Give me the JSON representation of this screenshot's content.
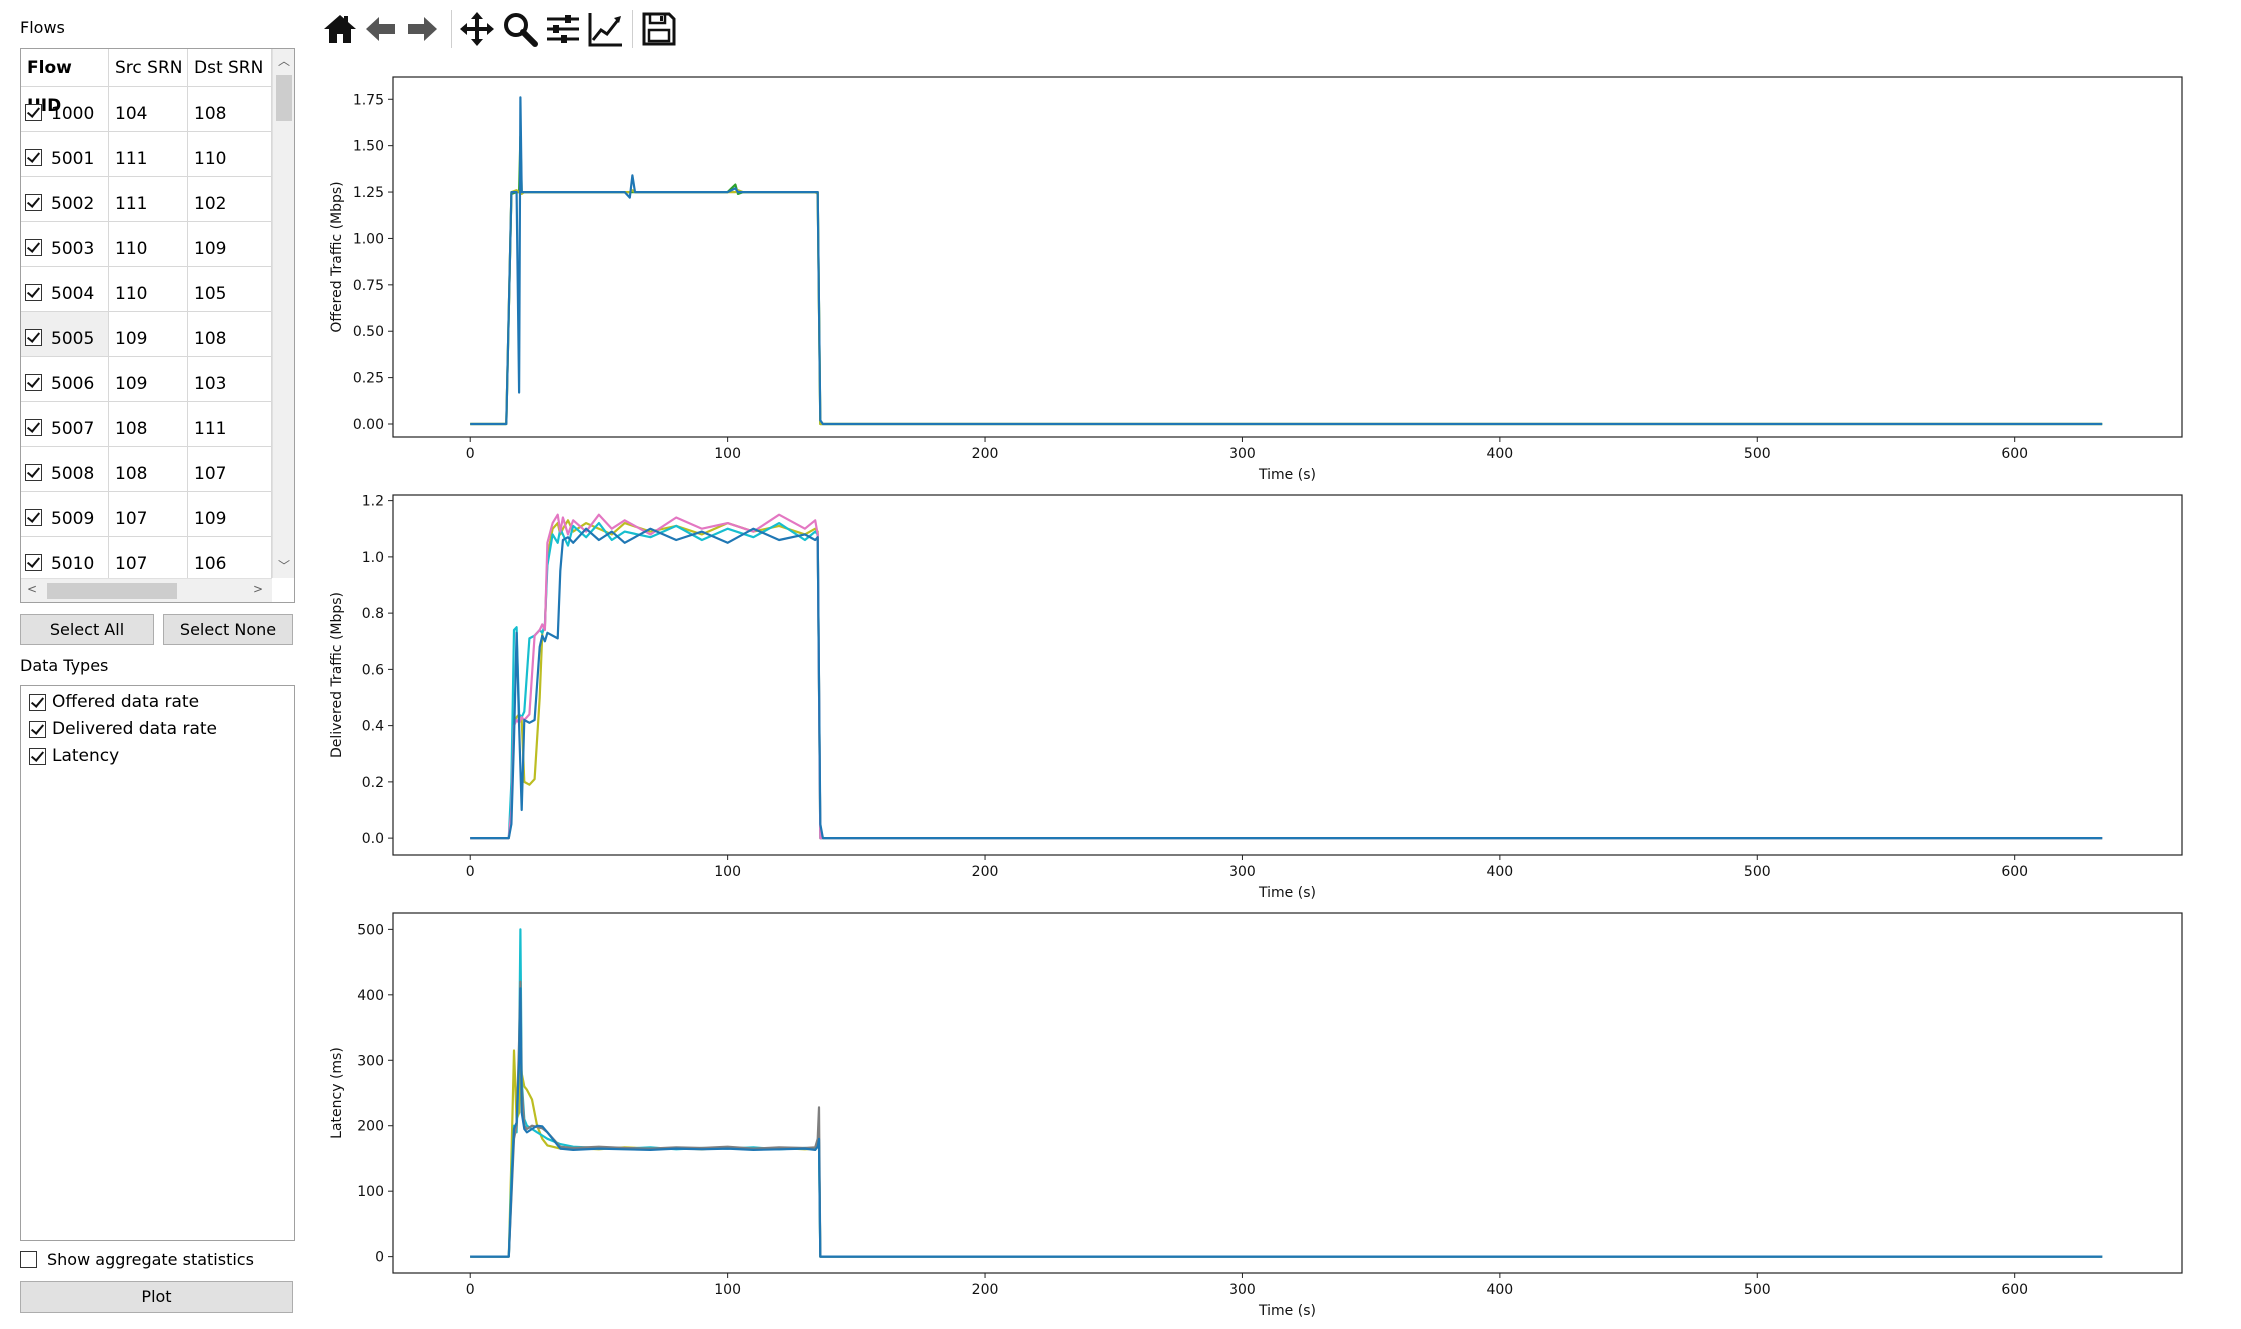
{
  "flows_label": "Flows",
  "table": {
    "columns": [
      "Flow UID",
      "Src SRN",
      "Dst SRN"
    ],
    "rows": [
      {
        "uid": "1000",
        "src": "104",
        "dst": "108"
      },
      {
        "uid": "5001",
        "src": "111",
        "dst": "110"
      },
      {
        "uid": "5002",
        "src": "111",
        "dst": "102"
      },
      {
        "uid": "5003",
        "src": "110",
        "dst": "109"
      },
      {
        "uid": "5004",
        "src": "110",
        "dst": "105"
      },
      {
        "uid": "5005",
        "src": "109",
        "dst": "108"
      },
      {
        "uid": "5006",
        "src": "109",
        "dst": "103"
      },
      {
        "uid": "5007",
        "src": "108",
        "dst": "111"
      },
      {
        "uid": "5008",
        "src": "108",
        "dst": "107"
      },
      {
        "uid": "5009",
        "src": "107",
        "dst": "109"
      },
      {
        "uid": "5010",
        "src": "107",
        "dst": "106"
      }
    ]
  },
  "buttons": {
    "select_all": "Select All",
    "select_none": "Select None",
    "plot": "Plot"
  },
  "data_types_label": "Data Types",
  "data_types": [
    {
      "label": "Offered data rate",
      "checked": true
    },
    {
      "label": "Delivered data rate",
      "checked": true
    },
    {
      "label": "Latency",
      "checked": true
    }
  ],
  "aggregate_label": "Show aggregate statistics",
  "toolbar": [
    "home-icon",
    "back-icon",
    "forward-icon",
    "pan-icon",
    "zoom-icon",
    "configure-subplots-icon",
    "edit-axes-icon",
    "save-icon"
  ],
  "chart_data": [
    {
      "type": "line",
      "ylabel": "Offered Traffic (Mbps)",
      "xlabel": "Time (s)",
      "xlim": [
        -30,
        665
      ],
      "ylim": [
        -0.07,
        1.87
      ],
      "xticks": [
        0,
        100,
        200,
        300,
        400,
        500,
        600
      ],
      "yticks": [
        "0.00",
        "0.25",
        "0.50",
        "0.75",
        "1.00",
        "1.25",
        "1.50",
        "1.75"
      ],
      "x": [
        0,
        14,
        16,
        18,
        19,
        19.5,
        20,
        21,
        60,
        62,
        63,
        64,
        66,
        100,
        103,
        104,
        106,
        134,
        135,
        136,
        137,
        634
      ],
      "series": [
        {
          "color": "#1f77b4",
          "values": [
            0,
            0,
            1.25,
            1.25,
            0.17,
            1.76,
            1.25,
            1.25,
            1.25,
            1.22,
            1.34,
            1.25,
            1.25,
            1.25,
            1.27,
            1.25,
            1.25,
            1.25,
            1.25,
            0.02,
            0,
            0
          ]
        },
        {
          "color": "#2ca02c",
          "values": [
            0,
            0,
            1.24,
            1.25,
            1.25,
            1.55,
            1.25,
            1.25,
            1.25,
            1.25,
            1.25,
            1.25,
            1.25,
            1.25,
            1.29,
            1.24,
            1.25,
            1.25,
            1.25,
            0,
            0,
            0
          ]
        },
        {
          "color": "#bcbd22",
          "values": [
            0,
            0,
            1.25,
            1.26,
            1.25,
            1.25,
            1.24,
            1.25,
            1.25,
            1.25,
            1.26,
            1.25,
            1.25,
            1.25,
            1.25,
            1.26,
            1.25,
            1.25,
            1.24,
            0,
            0,
            0
          ]
        }
      ]
    },
    {
      "type": "line",
      "ylabel": "Delivered Traffic (Mbps)",
      "xlabel": "Time (s)",
      "xlim": [
        -30,
        665
      ],
      "ylim": [
        -0.06,
        1.22
      ],
      "xticks": [
        0,
        100,
        200,
        300,
        400,
        500,
        600
      ],
      "yticks": [
        "0.0",
        "0.2",
        "0.4",
        "0.6",
        "0.8",
        "1.0",
        "1.2"
      ],
      "x": [
        0,
        15,
        16,
        17,
        18,
        19,
        20,
        21,
        23,
        25,
        27,
        28,
        29,
        30,
        32,
        34,
        35,
        36,
        38,
        40,
        45,
        50,
        55,
        60,
        70,
        80,
        90,
        100,
        110,
        120,
        130,
        134,
        135,
        136,
        137,
        634
      ],
      "series": [
        {
          "color": "#1f77b4",
          "values": [
            0,
            0,
            0.05,
            0.35,
            0.73,
            0.4,
            0.1,
            0.42,
            0.41,
            0.42,
            0.68,
            0.72,
            0.7,
            0.73,
            0.72,
            0.71,
            0.95,
            1.06,
            1.07,
            1.05,
            1.1,
            1.06,
            1.09,
            1.05,
            1.1,
            1.06,
            1.09,
            1.05,
            1.1,
            1.06,
            1.08,
            1.06,
            1.07,
            0.05,
            0,
            0
          ]
        },
        {
          "color": "#bcbd22",
          "values": [
            0,
            0,
            0.1,
            0.4,
            0.43,
            0.44,
            0.42,
            0.2,
            0.19,
            0.21,
            0.5,
            0.73,
            0.75,
            1.0,
            1.1,
            1.12,
            1.08,
            1.1,
            1.13,
            1.09,
            1.12,
            1.1,
            1.08,
            1.12,
            1.09,
            1.11,
            1.08,
            1.12,
            1.09,
            1.11,
            1.08,
            1.1,
            1.09,
            0,
            0,
            0
          ]
        },
        {
          "color": "#17becf",
          "values": [
            0,
            0,
            0.2,
            0.74,
            0.75,
            0.44,
            0.43,
            0.45,
            0.71,
            0.72,
            0.74,
            0.73,
            0.76,
            0.97,
            1.08,
            1.05,
            1.1,
            1.08,
            1.04,
            1.11,
            1.07,
            1.12,
            1.06,
            1.09,
            1.07,
            1.11,
            1.06,
            1.1,
            1.07,
            1.12,
            1.06,
            1.09,
            1.08,
            0,
            0,
            0
          ]
        },
        {
          "color": "#e377c2",
          "values": [
            0,
            0,
            0.1,
            0.4,
            0.42,
            0.41,
            0.43,
            0.42,
            0.44,
            0.72,
            0.74,
            0.76,
            0.74,
            1.05,
            1.12,
            1.15,
            1.09,
            1.14,
            1.08,
            1.13,
            1.09,
            1.15,
            1.1,
            1.13,
            1.08,
            1.14,
            1.1,
            1.12,
            1.09,
            1.15,
            1.1,
            1.13,
            1.08,
            0,
            0,
            0
          ]
        }
      ]
    },
    {
      "type": "line",
      "ylabel": "Latency (ms)",
      "xlabel": "Time (s)",
      "xlim": [
        -30,
        665
      ],
      "ylim": [
        -25,
        525
      ],
      "xticks": [
        0,
        100,
        200,
        300,
        400,
        500,
        600
      ],
      "yticks": [
        "0",
        "100",
        "200",
        "300",
        "400",
        "500"
      ],
      "x": [
        0,
        14,
        15,
        16,
        17,
        18,
        19,
        19.5,
        20,
        21,
        22,
        24,
        26,
        28,
        30,
        35,
        40,
        50,
        60,
        70,
        80,
        90,
        100,
        110,
        120,
        130,
        134,
        135,
        135.5,
        136,
        137,
        634
      ],
      "series": [
        {
          "color": "#bcbd22",
          "values": [
            0,
            0,
            0,
            150,
            315,
            210,
            220,
            300,
            280,
            260,
            255,
            240,
            200,
            180,
            170,
            165,
            166,
            164,
            167,
            165,
            166,
            164,
            167,
            165,
            166,
            164,
            165,
            170,
            175,
            0,
            0,
            0
          ]
        },
        {
          "color": "#17becf",
          "values": [
            0,
            0,
            0,
            120,
            200,
            190,
            310,
            500,
            270,
            210,
            200,
            195,
            190,
            185,
            180,
            172,
            168,
            166,
            165,
            167,
            164,
            166,
            165,
            167,
            164,
            166,
            165,
            168,
            170,
            0,
            0,
            0
          ]
        },
        {
          "color": "#7f7f7f",
          "values": [
            0,
            0,
            0,
            90,
            180,
            200,
            330,
            420,
            260,
            200,
            195,
            200,
            198,
            196,
            190,
            168,
            166,
            168,
            166,
            165,
            167,
            166,
            168,
            165,
            167,
            166,
            167,
            180,
            228,
            0,
            0,
            0
          ]
        },
        {
          "color": "#1f77b4",
          "values": [
            0,
            0,
            0,
            100,
            195,
            205,
            300,
            410,
            220,
            195,
            190,
            195,
            200,
            199,
            190,
            165,
            163,
            165,
            164,
            163,
            165,
            164,
            165,
            163,
            164,
            165,
            163,
            168,
            180,
            0,
            0,
            0
          ]
        }
      ]
    }
  ]
}
